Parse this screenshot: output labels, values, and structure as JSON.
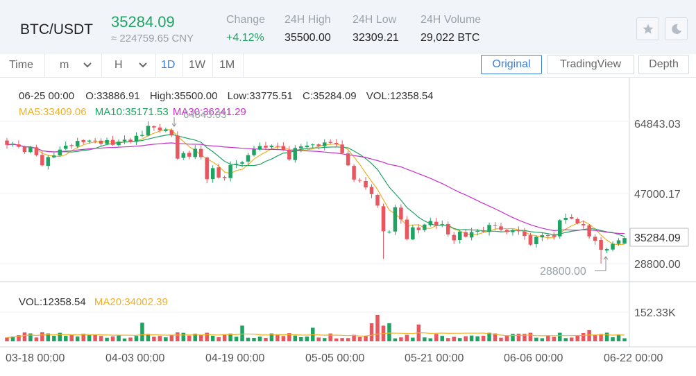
{
  "ticker": {
    "pair": "BTC/USDT",
    "last_price": "35284.09",
    "cny_value": "≈ 224759.65 CNY",
    "stats": [
      {
        "label": "Change",
        "value": "+4.12%",
        "positive": true
      },
      {
        "label": "24H High",
        "value": "35500.00"
      },
      {
        "label": "24H Low",
        "value": "32309.21"
      },
      {
        "label": "24H Volume",
        "value": "29,022 BTC"
      }
    ],
    "favorite_icon": "star-icon",
    "theme_icon": "moon-icon"
  },
  "toolbar": {
    "time_label": "Time",
    "minute_label": "m",
    "hour_label": "H",
    "intervals": [
      "1D",
      "1W",
      "1M"
    ],
    "active_interval": "1D",
    "modes": [
      "Original",
      "TradingView",
      "Depth"
    ],
    "active_mode": "Original"
  },
  "colors": {
    "up": "#1fa363",
    "down": "#e8575f",
    "ma5": "#f0b028",
    "ma10": "#1fa363",
    "ma30": "#c531c7",
    "accent": "#3b7cd6"
  },
  "chart_data": {
    "type": "candlestick",
    "info_line": {
      "date": "06-25 00:00",
      "open": "O:33886.91",
      "high": "High:35500.00",
      "low": "Low:33775.51",
      "close": "C:35284.09",
      "volume": "VOL:12358.54"
    },
    "ma_line": {
      "ma5": "MA5:33409.06",
      "ma10": "MA10:35171.53",
      "ma30": "MA30:36241.29"
    },
    "price_axis_labels": [
      "64843.03",
      "47000.17",
      "28800.00"
    ],
    "current_price_label": "35284.09",
    "max_marker_label": "64843.03",
    "min_marker_label": "28800.00",
    "volume_info": {
      "vol": "VOL:12358.54",
      "ma20": "MA20:34002.39"
    },
    "volume_axis_label": "152.33K",
    "x_tick_labels": [
      "03-18 00:00",
      "04-03 00:00",
      "04-19 00:00",
      "05-05 00:00",
      "05-21 00:00",
      "06-06 00:00",
      "06-22 00:00"
    ],
    "closes": [
      58900,
      59200,
      58400,
      57100,
      58300,
      56300,
      53700,
      55800,
      56200,
      57700,
      58700,
      58600,
      59900,
      59600,
      60000,
      59800,
      59200,
      60100,
      58900,
      59700,
      60200,
      59600,
      61200,
      61400,
      63700,
      63300,
      62600,
      62800,
      61300,
      55400,
      56800,
      55900,
      57900,
      55800,
      50200,
      53000,
      50600,
      50500,
      53800,
      54100,
      54500,
      56300,
      57800,
      58600,
      58200,
      58700,
      58600,
      57700,
      55200,
      58100,
      58500,
      58700,
      59000,
      58600,
      59500,
      59400,
      59100,
      56800,
      53700,
      50100,
      49900,
      48100,
      46400,
      43500,
      37000,
      36900,
      43100,
      40000,
      35000,
      38000,
      37300,
      38700,
      39600,
      38600,
      38800,
      36200,
      34700,
      36900,
      35600,
      36800,
      37100,
      37000,
      38600,
      38400,
      37400,
      36800,
      37300,
      37000,
      35800,
      33600,
      35600,
      36000,
      35900,
      35600,
      39800,
      40400,
      40200,
      39000,
      38500,
      35700,
      34600,
      32300,
      32500,
      33800,
      34700,
      35284
    ]
  }
}
